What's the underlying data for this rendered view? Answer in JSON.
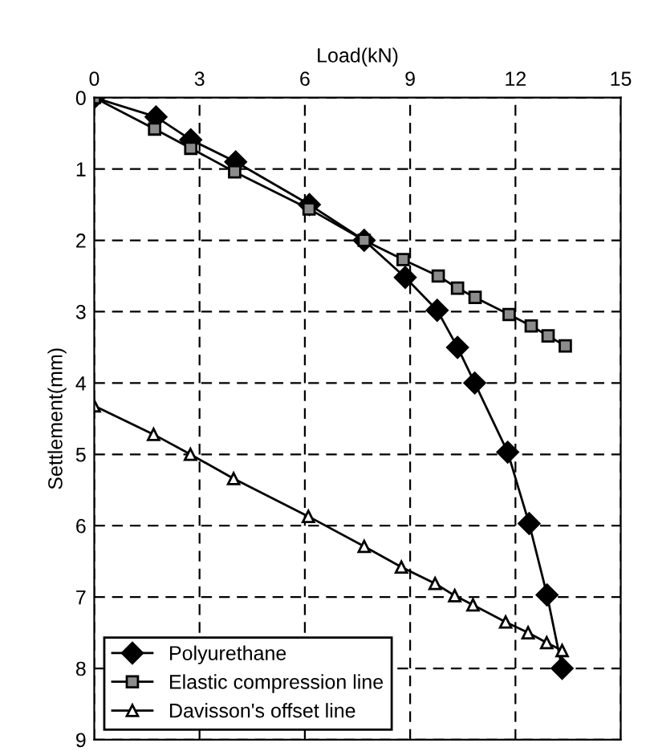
{
  "chart_data": {
    "type": "line",
    "xlabel": "Load(kN)",
    "ylabel": "Settlement(mm)",
    "xlim": [
      0,
      15
    ],
    "xticks": [
      0,
      3,
      6,
      9,
      12,
      15
    ],
    "ylim": [
      9,
      0
    ],
    "yticks": [
      0,
      1,
      2,
      3,
      4,
      5,
      6,
      7,
      8,
      9
    ],
    "grid": true,
    "legend": "bottom left",
    "line_style": "solid",
    "series": [
      {
        "name": "Polyurethane",
        "color": "#000000",
        "marker": "diamond",
        "x": [
          0,
          1.76,
          2.75,
          4.03,
          6.13,
          7.69,
          8.86,
          9.77,
          10.35,
          10.84,
          11.78,
          12.39,
          12.9,
          13.33
        ],
        "values": [
          0,
          0.27,
          0.59,
          0.9,
          1.5,
          2.0,
          2.52,
          2.98,
          3.5,
          4.0,
          4.97,
          5.97,
          6.97,
          8.0
        ]
      },
      {
        "name": "Elastic compression line",
        "color": "#8c8c8c",
        "marker": "square",
        "x": [
          0,
          1.72,
          2.75,
          4.0,
          6.12,
          7.69,
          8.8,
          9.8,
          10.35,
          10.85,
          11.82,
          12.45,
          12.93,
          13.42
        ],
        "values": [
          0,
          0.44,
          0.71,
          1.04,
          1.56,
          2.0,
          2.27,
          2.5,
          2.67,
          2.8,
          3.04,
          3.2,
          3.34,
          3.48
        ]
      },
      {
        "name": "Davisson's offset line",
        "color": "#ffffff",
        "marker": "triangle",
        "x": [
          0,
          1.69,
          2.74,
          3.97,
          6.1,
          7.69,
          8.75,
          9.71,
          10.27,
          10.79,
          11.72,
          12.36,
          12.89,
          13.33
        ],
        "values": [
          4.32,
          4.72,
          5.0,
          5.34,
          5.87,
          6.29,
          6.58,
          6.81,
          6.98,
          7.11,
          7.35,
          7.5,
          7.64,
          7.75
        ]
      }
    ]
  }
}
